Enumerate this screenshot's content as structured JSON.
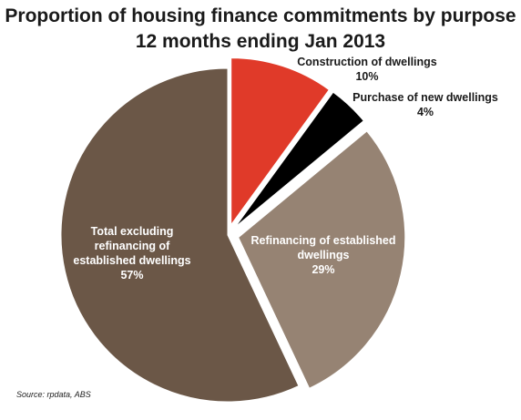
{
  "chart_data": {
    "type": "pie",
    "title": "Proportion of housing finance commitments by purpose",
    "subtitle": "12 months ending Jan 2013",
    "slices": [
      {
        "label_lines": [
          "Construction of dwellings"
        ],
        "label": "Construction of dwellings",
        "value": 10,
        "value_label": "10%",
        "color": "#e03a29",
        "exploded": true,
        "label_inside": false,
        "text_color": "#1a1a1a"
      },
      {
        "label_lines": [
          "Purchase of new dwellings"
        ],
        "label": "Purchase of new dwellings",
        "value": 4,
        "value_label": "4%",
        "color": "#000000",
        "exploded": true,
        "label_inside": false,
        "text_color": "#1a1a1a"
      },
      {
        "label_lines": [
          "Refinancing of established",
          "dwellings"
        ],
        "label": "Refinancing of established dwellings",
        "value": 29,
        "value_label": "29%",
        "color": "#968373",
        "exploded": true,
        "label_inside": true,
        "text_color": "#ffffff"
      },
      {
        "label_lines": [
          "Total excluding",
          "refinancing of",
          "established dwellings"
        ],
        "label": "Total excluding refinancing of established dwellings",
        "value": 57,
        "value_label": "57%",
        "color": "#6b5747",
        "exploded": false,
        "label_inside": true,
        "text_color": "#ffffff"
      }
    ],
    "source": "Source:  rpdata, ABS"
  }
}
